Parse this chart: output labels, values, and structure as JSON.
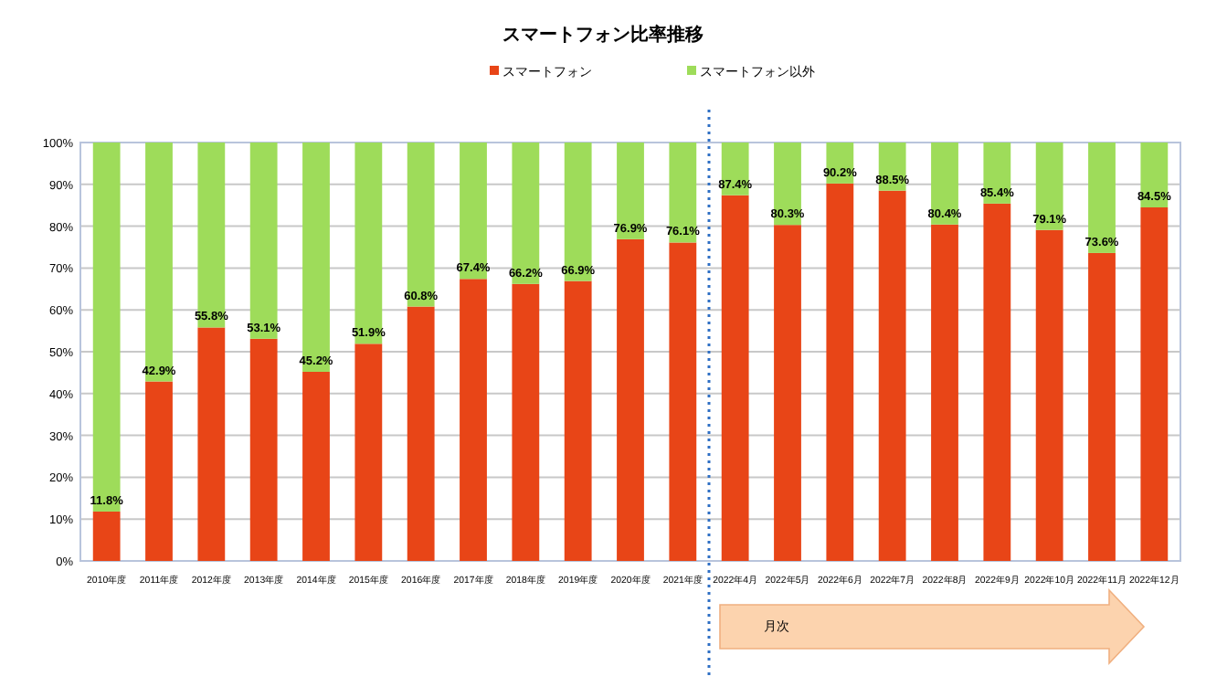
{
  "chart_data": {
    "type": "bar",
    "title": "スマートフォン比率推移",
    "stacked": true,
    "legend": "top",
    "grid": "y",
    "categories": [
      "2010年度",
      "2011年度",
      "2012年度",
      "2013年度",
      "2014年度",
      "2015年度",
      "2016年度",
      "2017年度",
      "2018年度",
      "2019年度",
      "2020年度",
      "2021年度",
      "2022年4月",
      "2022年5月",
      "2022年6月",
      "2022年7月",
      "2022年8月",
      "2022年9月",
      "2022年10月",
      "2022年11月",
      "2022年12月"
    ],
    "series": [
      {
        "name": "スマートフォン",
        "color": "#e84517",
        "values": [
          11.8,
          42.9,
          55.8,
          53.1,
          45.2,
          51.9,
          60.8,
          67.4,
          66.2,
          66.9,
          76.9,
          76.1,
          87.4,
          80.3,
          90.2,
          88.5,
          80.4,
          85.4,
          79.1,
          73.6,
          84.5
        ],
        "value_labels": [
          "11.8%",
          "42.9%",
          "55.8%",
          "53.1%",
          "45.2%",
          "51.9%",
          "60.8%",
          "67.4%",
          "66.2%",
          "66.9%",
          "76.9%",
          "76.1%",
          "87.4%",
          "80.3%",
          "90.2%",
          "88.5%",
          "80.4%",
          "85.4%",
          "79.1%",
          "73.6%",
          "84.5%"
        ]
      },
      {
        "name": "スマートフォン以外",
        "color": "#9edc5a",
        "values": [
          88.2,
          57.1,
          44.2,
          46.9,
          54.8,
          48.1,
          39.2,
          32.6,
          33.8,
          33.1,
          23.1,
          23.9,
          12.6,
          19.7,
          9.8,
          11.5,
          19.6,
          14.6,
          20.9,
          26.4,
          15.5
        ]
      }
    ],
    "ylim": [
      0,
      100
    ],
    "yticks": [
      {
        "value": 0,
        "label": "0%"
      },
      {
        "value": 10,
        "label": "10%"
      },
      {
        "value": 20,
        "label": "20%"
      },
      {
        "value": 30,
        "label": "30%"
      },
      {
        "value": 40,
        "label": "40%"
      },
      {
        "value": 50,
        "label": "50%"
      },
      {
        "value": 60,
        "label": "60%"
      },
      {
        "value": 70,
        "label": "70%"
      },
      {
        "value": 80,
        "label": "80%"
      },
      {
        "value": 90,
        "label": "90%"
      },
      {
        "value": 100,
        "label": "100%"
      }
    ],
    "annotations": [
      "月次"
    ],
    "ref_lines": [
      {
        "axis": "x",
        "value": "2022年4月",
        "color": "#2e6fc4",
        "line_style": "dotted"
      }
    ]
  }
}
